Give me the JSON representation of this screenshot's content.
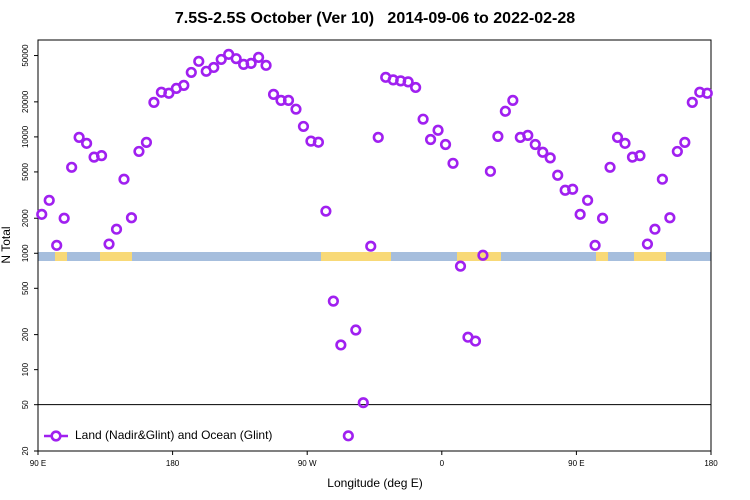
{
  "chart_data": {
    "type": "scatter",
    "title": "7.5S-2.5S October (Ver 10)   2014-09-06 to 2022-02-28",
    "x_label": "Longitude (deg E)",
    "y_label": "N Total",
    "log_y": true,
    "legend_position": "lower left",
    "xlim": [
      90,
      540
    ],
    "xticks": [
      {
        "value": 90,
        "label": "90 E"
      },
      180,
      {
        "value": 270,
        "label": "90 W"
      },
      {
        "value": 360,
        "label": "0"
      },
      {
        "value": 450,
        "label": "90 E"
      },
      {
        "value": 540,
        "label": "180"
      }
    ],
    "ylim": [
      20,
      68000
    ],
    "yticks": [
      20,
      50,
      100,
      200,
      500,
      1000,
      2000,
      5000,
      10000,
      20000,
      50000
    ],
    "hline": 50,
    "series": [
      {
        "name": "Land (Nadir&Glint) and Ocean (Glint)",
        "color": "#a020f0",
        "x": [
          92.5,
          97.5,
          102.5,
          107.5,
          112.5,
          117.5,
          122.5,
          127.5,
          132.5,
          137.5,
          142.5,
          147.5,
          152.5,
          157.5,
          162.5,
          167.5,
          172.5,
          177.5,
          182.5,
          187.5,
          192.5,
          197.5,
          202.5,
          207.5,
          212.5,
          217.5,
          222.5,
          227.5,
          232.5,
          237.5,
          242.5,
          247.5,
          252.5,
          257.5,
          262.5,
          267.5,
          272.5,
          277.5,
          282.5,
          287.5,
          292.5,
          297.5,
          302.5,
          307.5,
          312.5,
          317.5,
          322.5,
          327.5,
          332.5,
          337.5,
          342.5,
          347.5,
          352.5,
          357.5,
          362.5,
          367.5,
          372.5,
          377.5,
          382.5,
          387.5,
          392.5,
          397.5,
          402.5,
          407.5,
          412.5,
          417.5,
          422.5,
          427.5,
          432.5,
          437.5,
          442.5,
          447.5,
          452.5,
          457.5,
          462.5,
          467.5,
          472.5,
          477.5,
          482.5,
          487.5,
          492.5,
          497.5,
          502.5,
          507.5,
          512.5,
          517.5,
          522.5,
          527.5,
          532.5,
          537.5
        ],
        "values": [
          2160,
          2850,
          1170,
          2000,
          5480,
          9900,
          8800,
          6700,
          6900,
          1200,
          1610,
          4330,
          2020,
          7500,
          8970,
          19800,
          24200,
          23700,
          26100,
          27700,
          35800,
          44600,
          36600,
          39500,
          46300,
          51200,
          47000,
          42000,
          42800,
          48200,
          41200,
          23200,
          20600,
          20600,
          17300,
          12300,
          9200,
          9000,
          2300,
          388,
          163,
          27,
          219,
          52,
          1150,
          9900,
          32500,
          30900,
          30300,
          29700,
          26600,
          14200,
          9500,
          11400,
          8600,
          5930,
          775,
          190,
          176,
          962,
          5060,
          10100,
          16600,
          20600,
          9900,
          10300,
          8600,
          7380,
          6600,
          4680,
          3480,
          3550,
          2160,
          2850,
          1170,
          2000,
          5480,
          9900,
          8800,
          6700,
          6900,
          1200,
          1610,
          4330,
          2020,
          7500,
          8970,
          19800,
          24200,
          23700
        ]
      }
    ]
  }
}
